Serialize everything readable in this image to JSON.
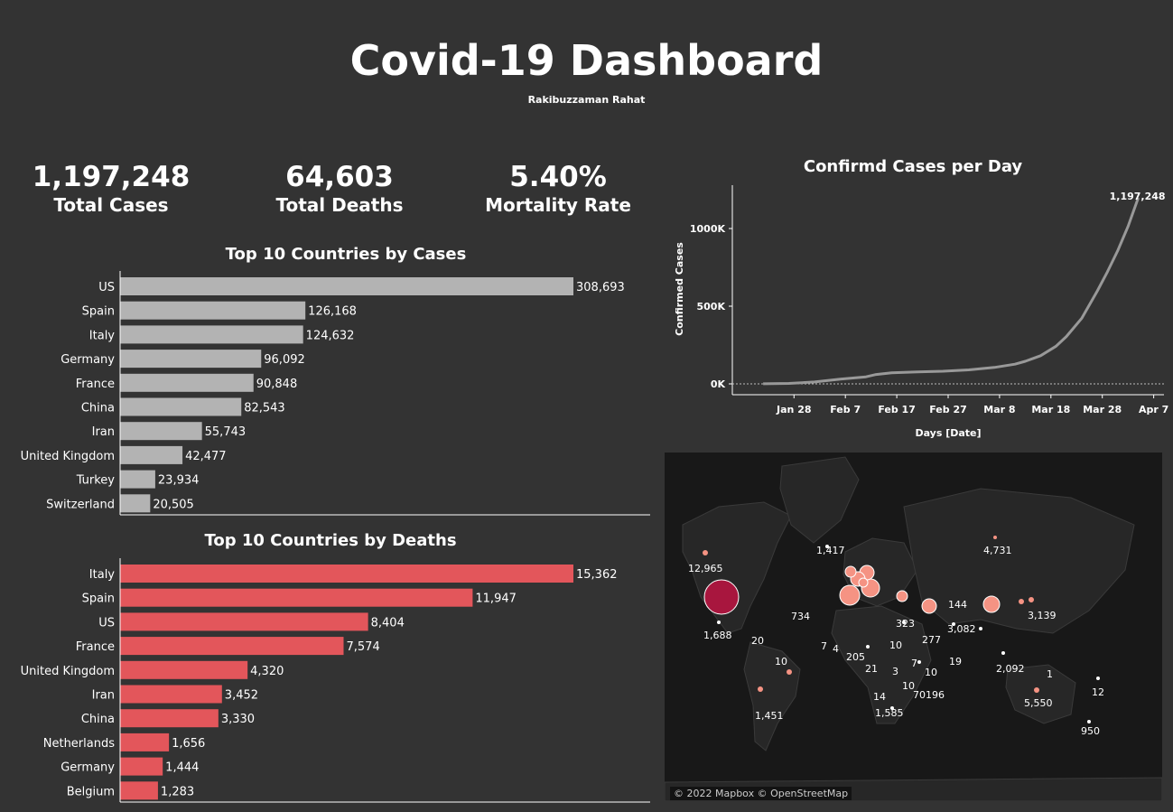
{
  "header": {
    "title": "Covid-19 Dashboard",
    "author": "Rakibuzzaman Rahat"
  },
  "kpis": [
    {
      "value": "1,197,248",
      "label": "Total Cases"
    },
    {
      "value": "64,603",
      "label": "Total Deaths"
    },
    {
      "value": "5.40%",
      "label": "Mortality Rate"
    }
  ],
  "colors": {
    "cases_bar": "#b3b3b3",
    "deaths_bar": "#e3565b",
    "line": "#999999",
    "map_big": "#a8163e",
    "map_mid": "#f59383",
    "map_small": "#ffffff"
  },
  "chart_data": [
    {
      "type": "bar",
      "title": "Top 10 Countries by Cases",
      "orientation": "horizontal",
      "categories": [
        "US",
        "Spain",
        "Italy",
        "Germany",
        "France",
        "China",
        "Iran",
        "United Kingdom",
        "Turkey",
        "Switzerland"
      ],
      "values": [
        308693,
        126168,
        124632,
        96092,
        90848,
        82543,
        55743,
        42477,
        23934,
        20505
      ],
      "value_labels": [
        "308,693",
        "126,168",
        "124,632",
        "96,092",
        "90,848",
        "82,543",
        "55,743",
        "42,477",
        "23,934",
        "20,505"
      ]
    },
    {
      "type": "bar",
      "title": "Top 10 Countries by Deaths",
      "orientation": "horizontal",
      "categories": [
        "Italy",
        "Spain",
        "US",
        "France",
        "United Kingdom",
        "Iran",
        "China",
        "Netherlands",
        "Germany",
        "Belgium"
      ],
      "values": [
        15362,
        11947,
        8404,
        7574,
        4320,
        3452,
        3330,
        1656,
        1444,
        1283
      ],
      "value_labels": [
        "15,362",
        "11,947",
        "8,404",
        "7,574",
        "4,320",
        "3,452",
        "3,330",
        "1,656",
        "1,444",
        "1,283"
      ]
    },
    {
      "type": "line",
      "title": "Confirmd Cases per Day",
      "xlabel": "Days [Date]",
      "ylabel": "Confirmed Cases",
      "x_ticks": [
        "Jan 28",
        "Feb 7",
        "Feb 17",
        "Feb 27",
        "Mar 8",
        "Mar 18",
        "Mar 28",
        "Apr 7"
      ],
      "y_ticks": [
        "0K",
        "500K",
        "1000K"
      ],
      "ylim": [
        0,
        1300000
      ],
      "end_label": "1,197,248",
      "x": [
        "2020-01-22",
        "2020-01-27",
        "2020-02-01",
        "2020-02-06",
        "2020-02-11",
        "2020-02-13",
        "2020-02-16",
        "2020-02-21",
        "2020-02-26",
        "2020-03-02",
        "2020-03-07",
        "2020-03-11",
        "2020-03-13",
        "2020-03-16",
        "2020-03-19",
        "2020-03-21",
        "2020-03-24",
        "2020-03-27",
        "2020-03-29",
        "2020-03-31",
        "2020-04-02",
        "2020-04-04"
      ],
      "values": [
        555,
        2900,
        12000,
        30800,
        45200,
        60400,
        71200,
        76900,
        81400,
        90300,
        105800,
        126700,
        145200,
        181500,
        242700,
        304500,
        422600,
        595800,
        721500,
        857500,
        1013500,
        1197248
      ]
    }
  ],
  "map": {
    "credit": "© 2022 Mapbox © OpenStreetMap",
    "labels": [
      "12,965",
      "1,417",
      "4,731",
      "734",
      "1,688",
      "20",
      "10",
      "7",
      "4",
      "205",
      "10",
      "323",
      "277",
      "144",
      "3,082",
      "3,139",
      "21",
      "3",
      "7",
      "10",
      "19",
      "2,092",
      "1",
      "12",
      "14",
      "10",
      "70",
      "196",
      "1,585",
      "1,451",
      "5,550",
      "950"
    ]
  }
}
